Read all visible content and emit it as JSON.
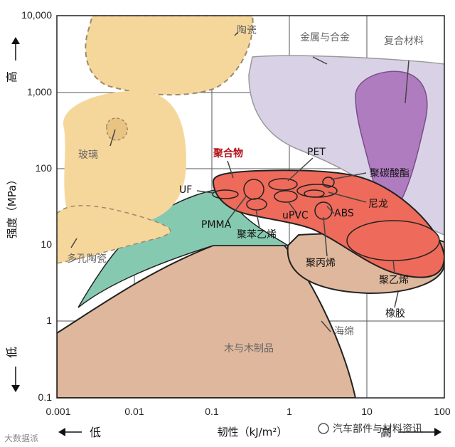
{
  "chart_data": {
    "type": "area",
    "title": "",
    "xlabel": "韧性（kJ/m²）",
    "ylabel": "强度（MPa）",
    "x_scale": "log",
    "y_scale": "log",
    "xlim": [
      0.001,
      100
    ],
    "ylim": [
      0.1,
      10000
    ],
    "grid": true,
    "x_ticks": [
      "0.001",
      "0.01",
      "0.1",
      "1",
      "10",
      "100"
    ],
    "y_ticks": [
      "0.1",
      "1",
      "10",
      "100",
      "1,000",
      "10,000"
    ],
    "x_low_label": "低",
    "x_high_label": "高",
    "y_low_label": "低",
    "y_high_label": "高",
    "regions": [
      {
        "name": "陶瓷",
        "color": "#f6d79b",
        "approx_toughness_range": [
          0.0015,
          0.35
        ],
        "approx_strength_range": [
          600,
          10000
        ]
      },
      {
        "name": "玻璃",
        "color": "#f6d79b",
        "approx_toughness_range": [
          0.0015,
          0.03
        ],
        "approx_strength_range": [
          8,
          600
        ]
      },
      {
        "name": "多孔陶瓷",
        "color": "#f6d79b",
        "approx_toughness_range": [
          0.001,
          0.1
        ],
        "approx_strength_range": [
          8,
          100
        ]
      },
      {
        "name": "金属与合金",
        "color": "#d9d2e6",
        "approx_toughness_range": [
          0.3,
          100
        ],
        "approx_strength_range": [
          10,
          4000
        ]
      },
      {
        "name": "复合材料",
        "color": "#b07cc0",
        "approx_toughness_range": [
          9,
          70
        ],
        "approx_strength_range": [
          50,
          1500
        ]
      },
      {
        "name": "聚合物",
        "color": "#ee6a5a",
        "approx_toughness_range": [
          0.12,
          100
        ],
        "approx_strength_range": [
          7,
          80
        ]
      },
      {
        "name": "聚苯乙烯",
        "color": "#86c9b1",
        "approx_toughness_range": [
          0.002,
          1
        ],
        "approx_strength_range": [
          2,
          40
        ]
      },
      {
        "name": "橡胶",
        "color": "#dfb79c",
        "approx_toughness_range": [
          1,
          100
        ],
        "approx_strength_range": [
          2,
          20
        ]
      },
      {
        "name": "木与木制品",
        "color": "#dfb79c",
        "approx_toughness_range": [
          0.001,
          10
        ],
        "approx_strength_range": [
          0.1,
          10
        ]
      }
    ],
    "labels": [
      "陶瓷",
      "金属与合金",
      "复合材料",
      "玻璃",
      "聚合物",
      "PET",
      "聚碳酸酯",
      "UF",
      "尼龙",
      "PMMA",
      "ABS",
      "uPVC",
      "聚苯乙烯",
      "多孔陶瓷",
      "聚丙烯",
      "聚乙烯",
      "橡胶",
      "海绵",
      "木与木制品"
    ]
  },
  "watermark_left": "大数据派",
  "watermark_right": "汽车部件与材料资讯",
  "colors": {
    "ceramic": "#f6d79b",
    "metal": "#d9d2e6",
    "composite": "#b07cc0",
    "polymer": "#ee6a5a",
    "polystyrene": "#86c9b1",
    "wood": "#dfb79c",
    "accent_title": "#b5121b"
  }
}
